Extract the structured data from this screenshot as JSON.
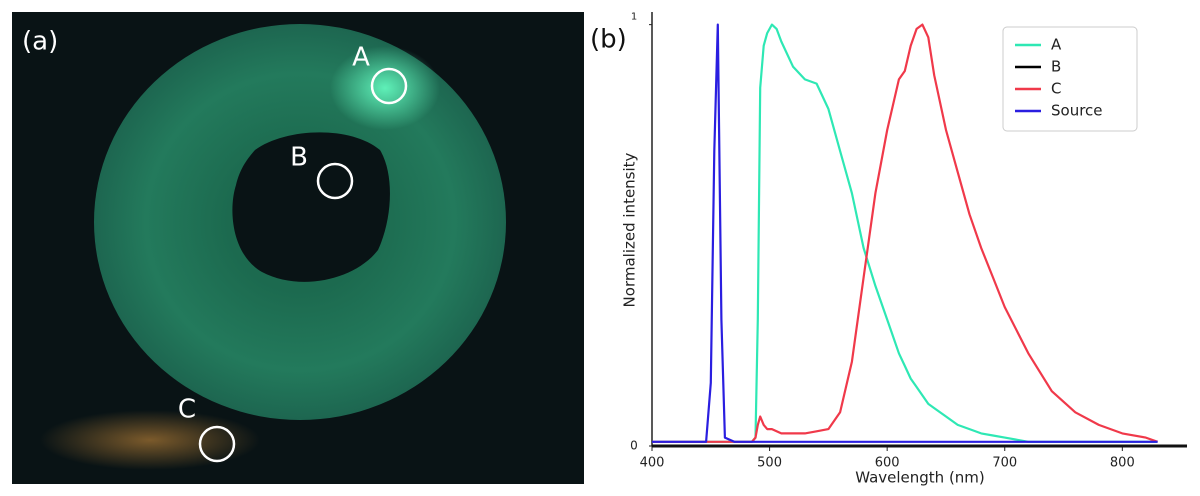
{
  "photo": {
    "panel_label": "(a)",
    "markers": [
      "A",
      "B",
      "C"
    ]
  },
  "chart_data": {
    "type": "line",
    "panel_label": "(b)",
    "x_label": "Wavelength (nm)",
    "y_label": "Normalized intensity",
    "x": [
      400,
      440,
      446,
      450,
      453,
      456,
      459,
      462,
      470,
      485,
      488,
      490,
      492,
      495,
      498,
      502,
      506,
      510,
      520,
      530,
      540,
      550,
      560,
      570,
      580,
      590,
      600,
      610,
      615,
      620,
      625,
      630,
      635,
      640,
      650,
      660,
      670,
      680,
      690,
      700,
      720,
      740,
      760,
      780,
      800,
      820,
      830
    ],
    "series": [
      {
        "name": "A",
        "color": "#2ee8b4",
        "values": [
          0.01,
          0.01,
          0.01,
          0.01,
          0.01,
          0.01,
          0.01,
          0.01,
          0.01,
          0.01,
          0.02,
          0.3,
          0.85,
          0.95,
          0.98,
          1.0,
          0.99,
          0.96,
          0.9,
          0.87,
          0.86,
          0.8,
          0.7,
          0.6,
          0.47,
          0.38,
          0.3,
          0.22,
          0.19,
          0.16,
          0.14,
          0.12,
          0.1,
          0.09,
          0.07,
          0.05,
          0.04,
          0.03,
          0.025,
          0.02,
          0.01,
          0.01,
          0.01,
          0.01,
          0.01,
          0.01,
          0.01
        ]
      },
      {
        "name": "B",
        "color": "#000000",
        "values": [
          0,
          0,
          0,
          0,
          0,
          0,
          0,
          0,
          0,
          0,
          0,
          0,
          0,
          0,
          0,
          0,
          0,
          0,
          0,
          0,
          0,
          0,
          0,
          0,
          0,
          0,
          0,
          0,
          0,
          0,
          0,
          0,
          0,
          0,
          0,
          0,
          0,
          0,
          0,
          0,
          0,
          0,
          0,
          0,
          0,
          0,
          0
        ]
      },
      {
        "name": "C",
        "color": "#f0394a",
        "values": [
          0.01,
          0.01,
          0.01,
          0.01,
          0.01,
          0.01,
          0.01,
          0.01,
          0.01,
          0.01,
          0.02,
          0.05,
          0.07,
          0.05,
          0.04,
          0.04,
          0.035,
          0.03,
          0.03,
          0.03,
          0.035,
          0.04,
          0.08,
          0.2,
          0.4,
          0.6,
          0.75,
          0.87,
          0.89,
          0.95,
          0.99,
          1.0,
          0.97,
          0.88,
          0.75,
          0.65,
          0.55,
          0.47,
          0.4,
          0.33,
          0.22,
          0.13,
          0.08,
          0.05,
          0.03,
          0.02,
          0.01
        ]
      },
      {
        "name": "Source",
        "color": "#2a1ee0",
        "values": [
          0.01,
          0.01,
          0.01,
          0.15,
          0.7,
          1.0,
          0.3,
          0.02,
          0.01,
          0.01,
          0.01,
          0.01,
          0.01,
          0.01,
          0.01,
          0.01,
          0.01,
          0.01,
          0.01,
          0.01,
          0.01,
          0.01,
          0.01,
          0.01,
          0.01,
          0.01,
          0.01,
          0.01,
          0.01,
          0.01,
          0.01,
          0.01,
          0.01,
          0.01,
          0.01,
          0.01,
          0.01,
          0.01,
          0.01,
          0.01,
          0.01,
          0.01,
          0.01,
          0.01,
          0.01,
          0.01,
          0.01
        ]
      }
    ],
    "xlim": [
      400,
      855
    ],
    "ylim": [
      0,
      1.03
    ],
    "xticks": [
      400,
      500,
      600,
      700,
      800
    ],
    "yticks": [
      0,
      1
    ],
    "legend": "upper right"
  }
}
